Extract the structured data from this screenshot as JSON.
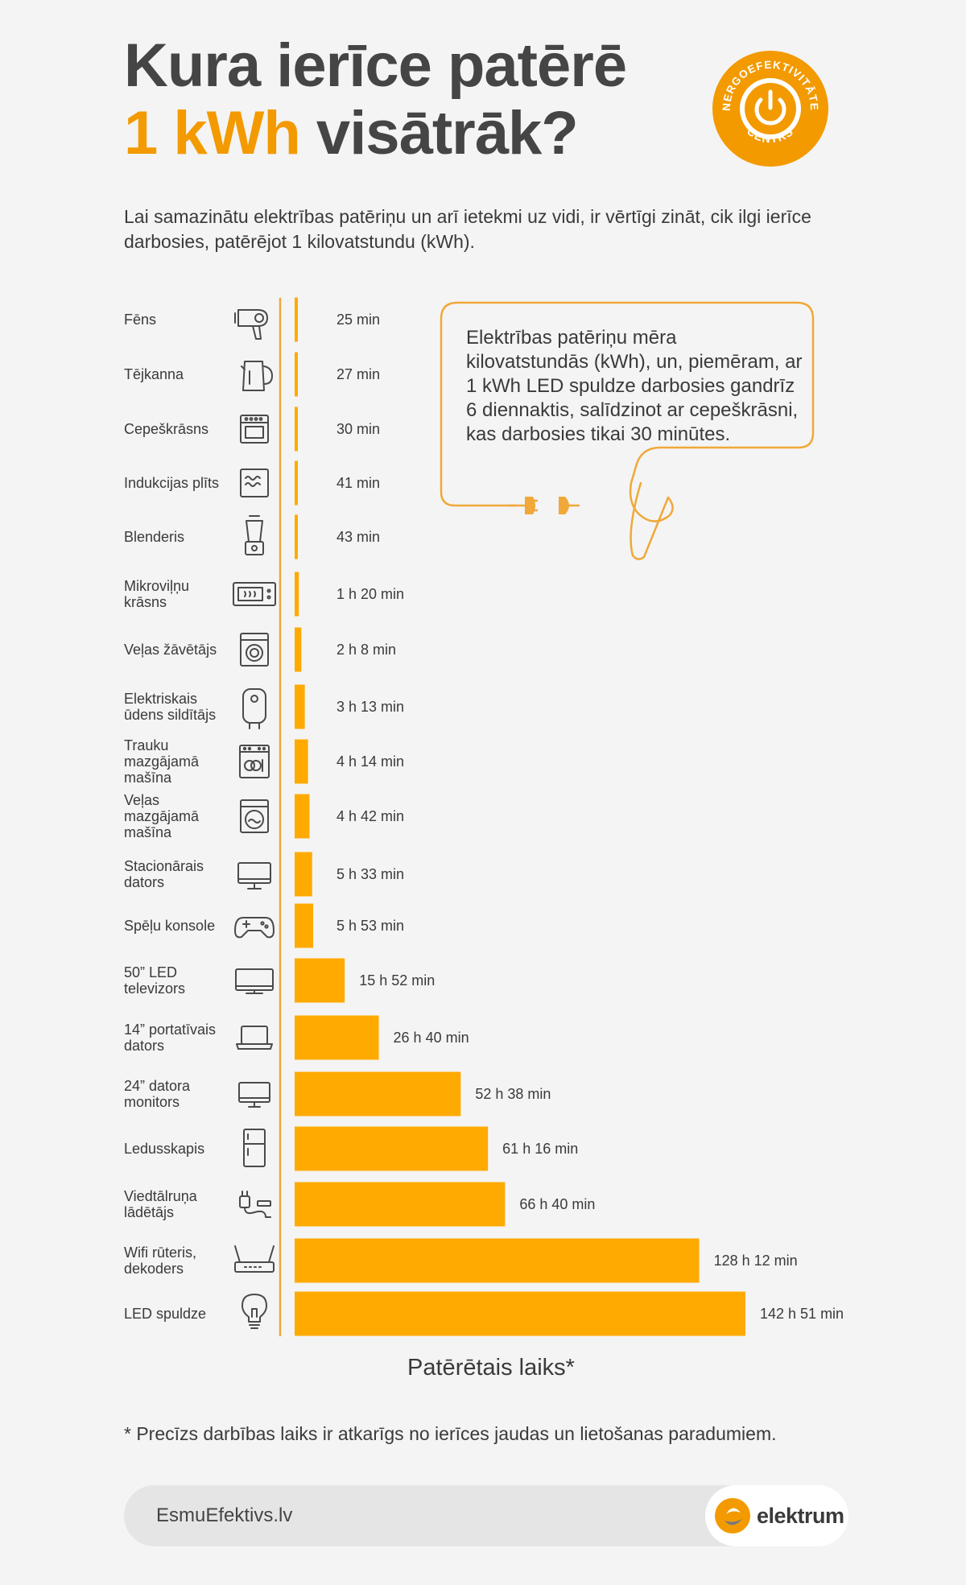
{
  "title": {
    "line1": "Kura ierīce patērē",
    "accent": "1 kWh",
    "rest": " visātrāk?"
  },
  "badge": {
    "text_top": "ENERGOEFEKTIVITĀTES",
    "text_bottom": "CENTRS",
    "icon": "power-icon",
    "color": "#f39a00"
  },
  "intro": "Lai samazinātu elektrības patēriņu un arī ietekmi uz vidi, ir vērtīgi zināt, cik ilgi ierīce darbosies, patērējot 1 kilovatstundu (kWh).",
  "callout": {
    "text": "Elektrības patēriņu mēra kilovatstundās (kWh), un, piemēram, ar 1 kWh LED spuldze darbosies gandrīz 6 diennaktis, salīdzinot ar cepeškrāsni, kas darbosies tikai 30 minūtes.",
    "icon": "plug-icon"
  },
  "chart_data": {
    "type": "bar",
    "orientation": "horizontal",
    "unit": "minutes",
    "xlabel": "Patērētais laiks*",
    "bar_color": "#ffaa00",
    "axis_color": "#f0a838",
    "categories": [
      {
        "label": [
          "Fēns"
        ],
        "value": 25,
        "value_label": "25 min",
        "icon": "hair-dryer-icon"
      },
      {
        "label": [
          "Tējkanna"
        ],
        "value": 27,
        "value_label": "27 min",
        "icon": "kettle-icon"
      },
      {
        "label": [
          "Cepeškrāsns"
        ],
        "value": 30,
        "value_label": "30 min",
        "icon": "oven-icon"
      },
      {
        "label": [
          "Indukcijas plīts"
        ],
        "value": 41,
        "value_label": "41 min",
        "icon": "induction-stove-icon"
      },
      {
        "label": [
          "Blenderis"
        ],
        "value": 43,
        "value_label": "43 min",
        "icon": "blender-icon"
      },
      {
        "label": [
          "Mikroviļņu",
          "krāsns"
        ],
        "value": 80,
        "value_label": "1 h 20 min",
        "icon": "microwave-icon"
      },
      {
        "label": [
          "Veļas žāvētājs"
        ],
        "value": 128,
        "value_label": "2 h 8 min",
        "icon": "dryer-icon"
      },
      {
        "label": [
          "Elektriskais",
          "ūdens sildītājs"
        ],
        "value": 193,
        "value_label": "3 h 13 min",
        "icon": "water-heater-icon"
      },
      {
        "label": [
          "Trauku",
          "mazgājamā",
          "mašīna"
        ],
        "value": 254,
        "value_label": "4 h 14 min",
        "icon": "dishwasher-icon"
      },
      {
        "label": [
          "Veļas",
          "mazgājamā",
          "mašīna"
        ],
        "value": 282,
        "value_label": "4 h 42 min",
        "icon": "washing-machine-icon"
      },
      {
        "label": [
          "Stacionārais",
          "dators"
        ],
        "value": 333,
        "value_label": "5 h 33 min",
        "icon": "desktop-computer-icon"
      },
      {
        "label": [
          "Spēļu konsole"
        ],
        "value": 353,
        "value_label": "5 h 53 min",
        "icon": "gamepad-icon"
      },
      {
        "label": [
          "50” LED",
          "televizors"
        ],
        "value": 952,
        "value_label": "15 h 52 min",
        "icon": "tv-icon"
      },
      {
        "label": [
          "14” portatīvais",
          "dators"
        ],
        "value": 1600,
        "value_label": "26 h 40 min",
        "icon": "laptop-icon"
      },
      {
        "label": [
          "24” datora",
          "monitors"
        ],
        "value": 3158,
        "value_label": "52 h 38 min",
        "icon": "monitor-icon"
      },
      {
        "label": [
          "Ledusskapis"
        ],
        "value": 3676,
        "value_label": "61 h 16 min",
        "icon": "fridge-icon"
      },
      {
        "label": [
          "Viedtālruņa",
          "lādētājs"
        ],
        "value": 4000,
        "value_label": "66 h 40 min",
        "icon": "charger-icon"
      },
      {
        "label": [
          "Wifi rūteris,",
          "dekoders"
        ],
        "value": 7692,
        "value_label": "128 h 12 min",
        "icon": "router-icon"
      },
      {
        "label": [
          "LED spuldze"
        ],
        "value": 8571,
        "value_label": "142 h 51 min",
        "icon": "light-bulb-icon"
      }
    ]
  },
  "footnote": "* Precīzs darbības laiks ir atkarīgs no ierīces jaudas un lietošanas paradumiem.",
  "footer": {
    "site": "EsmuEfektivs.lv",
    "brand": "elektrum",
    "brand_icon": "elektrum-logo-icon"
  }
}
